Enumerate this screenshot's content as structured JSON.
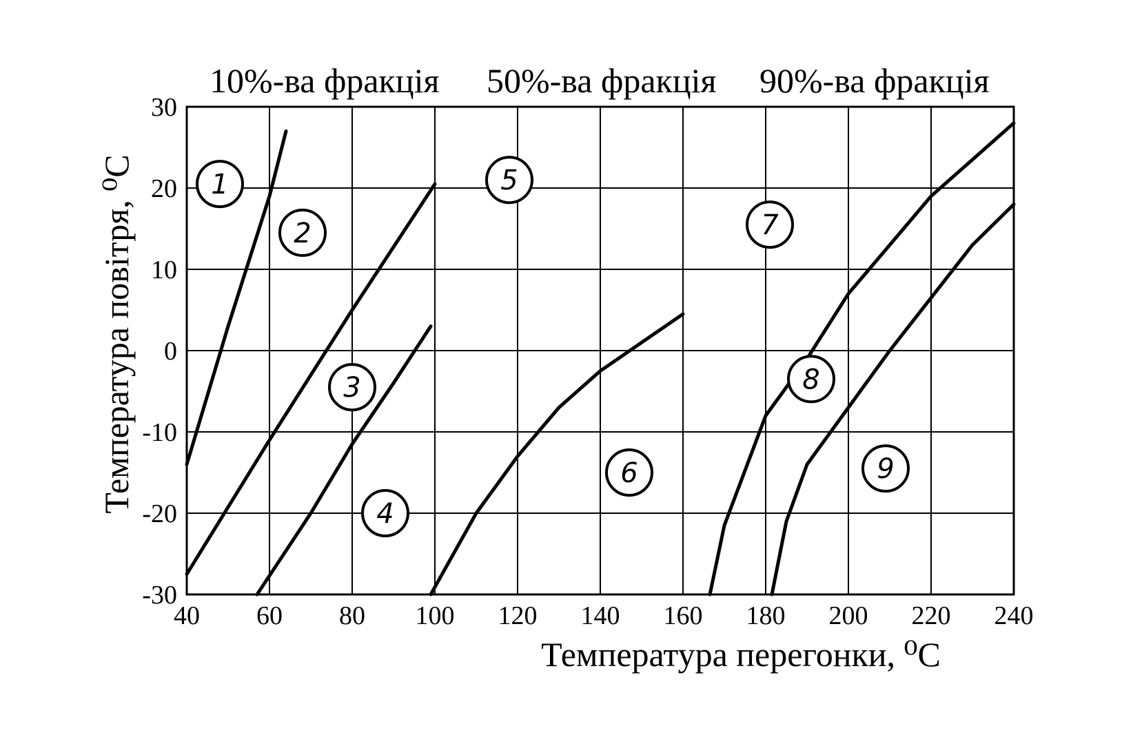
{
  "chart_data": {
    "type": "line",
    "xlabel": "Температура перегонки, ⁰С",
    "ylabel": "Температура повітря, ⁰С",
    "column_headers": [
      "10%-ва фракція",
      "50%-ва фракція",
      "90%-ва фракція"
    ],
    "xlim": [
      40,
      240
    ],
    "ylim": [
      -30,
      30
    ],
    "xticks": [
      40,
      60,
      80,
      100,
      120,
      140,
      160,
      180,
      200,
      220,
      240
    ],
    "yticks": [
      -30,
      -20,
      -10,
      0,
      10,
      20,
      30
    ],
    "xtick_labels": [
      "40",
      "60",
      "80",
      "100",
      "120",
      "140",
      "160",
      "180",
      "200",
      "220",
      "240"
    ],
    "ytick_labels": [
      "-30",
      "-20",
      "-10",
      "0",
      "10",
      "20",
      "30"
    ],
    "grid": true,
    "series": [
      {
        "x": [
          40,
          50,
          60,
          64
        ],
        "y": [
          -14,
          3,
          19,
          27
        ]
      },
      {
        "x": [
          40,
          60,
          80,
          100
        ],
        "y": [
          -27.5,
          -11,
          5,
          20.5
        ]
      },
      {
        "x": [
          57,
          70,
          80,
          90,
          99
        ],
        "y": [
          -30,
          -20,
          -11.5,
          -4,
          3
        ]
      },
      {
        "x": [
          99,
          110,
          120,
          130,
          140,
          150,
          160
        ],
        "y": [
          -30,
          -20,
          -13,
          -7,
          -2.5,
          1,
          4.5
        ]
      },
      {
        "x": [
          166.5,
          170,
          180,
          190,
          200,
          210,
          220,
          230,
          240
        ],
        "y": [
          -30,
          -21.5,
          -8,
          -1,
          7,
          13,
          19,
          23.5,
          28
        ]
      },
      {
        "x": [
          181.5,
          185,
          190,
          200,
          210,
          220,
          230,
          240
        ],
        "y": [
          -30,
          -21,
          -14,
          -7,
          0,
          6.5,
          13,
          18
        ]
      }
    ],
    "region_labels": [
      {
        "text": "1",
        "x": 48,
        "y": 20.5
      },
      {
        "text": "2",
        "x": 68,
        "y": 14.5
      },
      {
        "text": "3",
        "x": 80,
        "y": -4.5
      },
      {
        "text": "4",
        "x": 88,
        "y": -20
      },
      {
        "text": "5",
        "x": 118,
        "y": 21
      },
      {
        "text": "6",
        "x": 147,
        "y": -15
      },
      {
        "text": "7",
        "x": 181,
        "y": 15.5
      },
      {
        "text": "8",
        "x": 191,
        "y": -3.5
      },
      {
        "text": "9",
        "x": 209,
        "y": -14.5
      }
    ]
  }
}
